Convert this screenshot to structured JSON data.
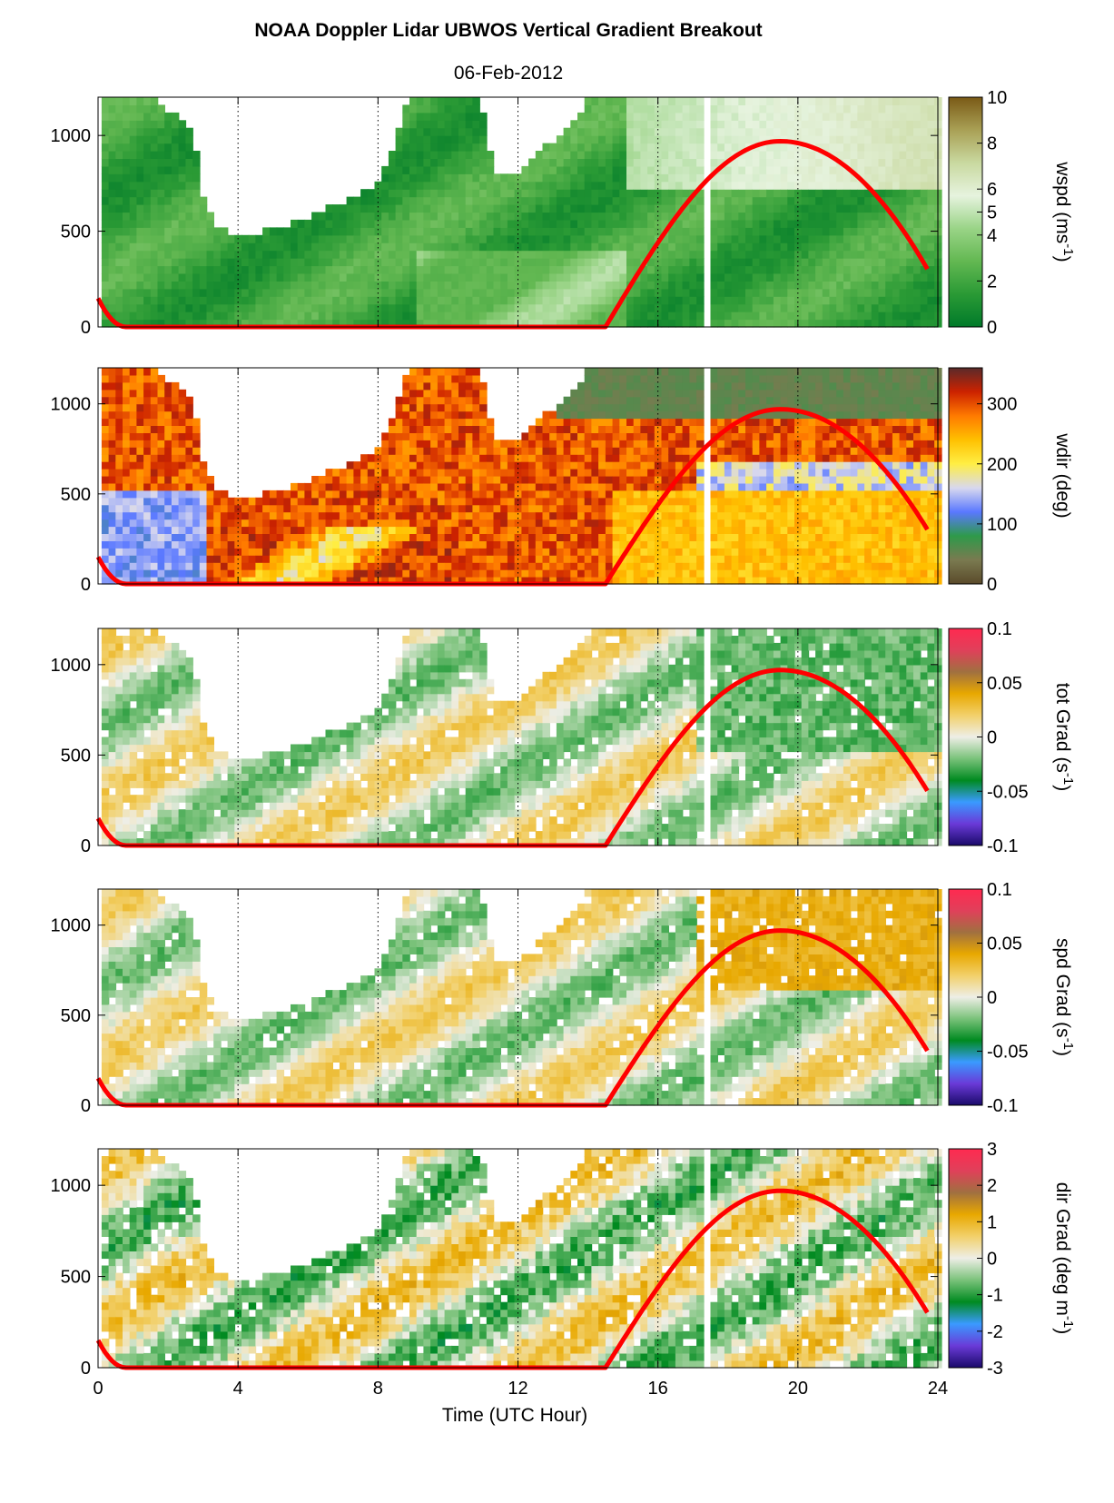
{
  "figure": {
    "title": "NOAA Doppler Lidar  UBWOS  Vertical Gradient Breakout",
    "subtitle": "06-Feb-2012",
    "xlabel": "Time (UTC Hour)"
  },
  "chart_data": {
    "type": "heatmap",
    "x_range": [
      0,
      24
    ],
    "x_ticks": [
      "0",
      "4",
      "8",
      "12",
      "16",
      "20",
      "24"
    ],
    "x_dotted_gridlines": [
      4,
      8,
      12,
      16,
      20
    ],
    "y_range": [
      0,
      1200
    ],
    "y_ticks": [
      "0",
      "500",
      "1000"
    ],
    "boundary_layer_overlay": {
      "color": "#ff0000",
      "description_points": [
        [
          0,
          150
        ],
        [
          0.4,
          50
        ],
        [
          0.8,
          0
        ],
        [
          14.5,
          0
        ],
        [
          17,
          600
        ],
        [
          19.5,
          970
        ],
        [
          21,
          900
        ],
        [
          23.8,
          270
        ]
      ]
    },
    "panels": [
      {
        "name": "wspd",
        "ylabel": "wspd (ms",
        "ylabel_sup": "-1",
        "ylabel_close": ")",
        "colorbar_ticks": [
          "0",
          "2",
          "4",
          "5",
          "6",
          "8",
          "10"
        ],
        "colorbar_tick_values": [
          0,
          2,
          4,
          5,
          6,
          8,
          10
        ],
        "colorbar_range": [
          0,
          10
        ],
        "colorbar_colors": [
          "#007a2a",
          "#2a9a35",
          "#63b852",
          "#9ad487",
          "#e6f3de",
          "#c9d9a0",
          "#a9a055",
          "#7a5a16"
        ]
      },
      {
        "name": "wdir",
        "ylabel": "wdir (deg)",
        "ylabel_sup": "",
        "ylabel_close": "",
        "colorbar_ticks": [
          "0",
          "100",
          "200",
          "300"
        ],
        "colorbar_tick_values": [
          0,
          100,
          200,
          300
        ],
        "colorbar_range": [
          0,
          360
        ],
        "colorbar_colors": [
          "#5a4a2a",
          "#7a7a50",
          "#2e9a4a",
          "#5a78ff",
          "#d8d8ee",
          "#ffee44",
          "#ffc000",
          "#ff7a00",
          "#cc2200",
          "#5a2a2a"
        ]
      },
      {
        "name": "tot-grad",
        "ylabel": "tot Grad (s",
        "ylabel_sup": "-1",
        "ylabel_close": ")",
        "colorbar_ticks": [
          "-0.1",
          "-0.05",
          "0",
          "0.05",
          "0.1"
        ],
        "colorbar_tick_values": [
          -0.1,
          -0.05,
          0,
          0.05,
          0.1
        ],
        "colorbar_range": [
          -0.1,
          0.1
        ],
        "colorbar_colors": [
          "#1a0a6a",
          "#6a3ad8",
          "#3a9aff",
          "#008a20",
          "#7ac27a",
          "#eeeee6",
          "#f2d06a",
          "#e8a800",
          "#a07040",
          "#e0405a",
          "#ff2a50"
        ]
      },
      {
        "name": "spd-grad",
        "ylabel": "spd Grad (s",
        "ylabel_sup": "-1",
        "ylabel_close": ")",
        "colorbar_ticks": [
          "-0.1",
          "-0.05",
          "0",
          "0.05",
          "0.1"
        ],
        "colorbar_tick_values": [
          -0.1,
          -0.05,
          0,
          0.05,
          0.1
        ],
        "colorbar_range": [
          -0.1,
          0.1
        ],
        "colorbar_colors": [
          "#1a0a6a",
          "#6a3ad8",
          "#3a9aff",
          "#008a20",
          "#7ac27a",
          "#eeeee6",
          "#f2d06a",
          "#e8a800",
          "#a07040",
          "#e0405a",
          "#ff2a50"
        ]
      },
      {
        "name": "dir-grad",
        "ylabel": "dir Grad (deg m",
        "ylabel_sup": "-1",
        "ylabel_close": ")",
        "colorbar_ticks": [
          "-3",
          "-2",
          "-1",
          "0",
          "1",
          "2",
          "3"
        ],
        "colorbar_tick_values": [
          -3,
          -2,
          -1,
          0,
          1,
          2,
          3
        ],
        "colorbar_range": [
          -3,
          3
        ],
        "colorbar_colors": [
          "#1a0a6a",
          "#6a3ad8",
          "#3a9aff",
          "#008a20",
          "#7ac27a",
          "#eeeee6",
          "#f2d06a",
          "#e8a800",
          "#a07040",
          "#e0405a",
          "#ff2a50"
        ]
      }
    ]
  }
}
